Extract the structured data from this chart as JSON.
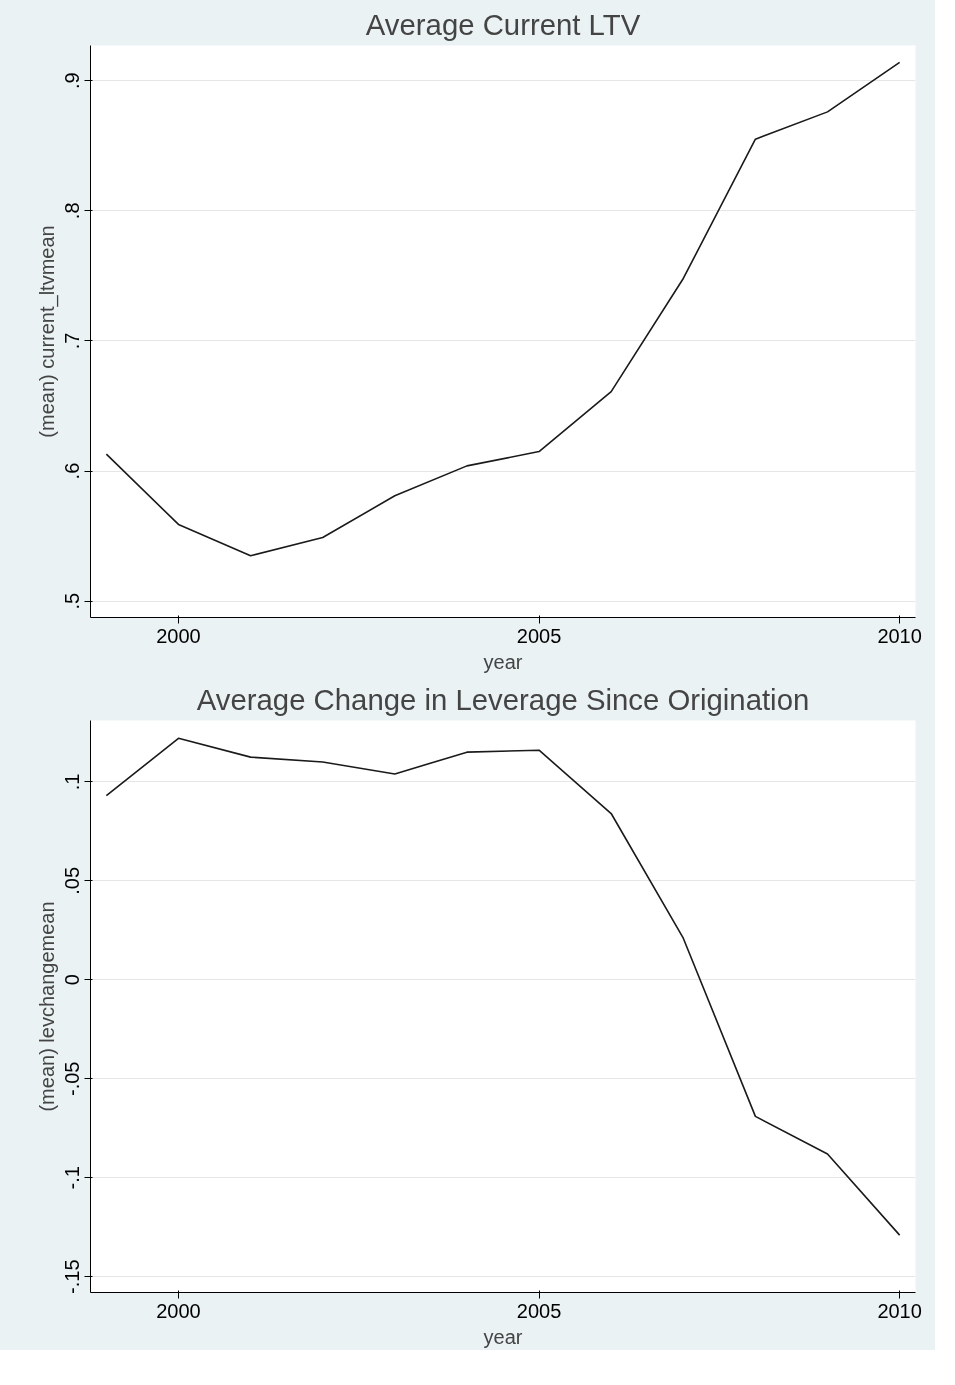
{
  "chart_data": [
    {
      "type": "line",
      "title": "Average Current LTV",
      "xlabel": "year",
      "ylabel": "(mean) current_ltvmean",
      "x": [
        1999,
        2000,
        2001,
        2002,
        2003,
        2004,
        2005,
        2006,
        2007,
        2008,
        2009,
        2010
      ],
      "series": [
        {
          "color": "#1a1a1a",
          "values": [
            0.613,
            0.559,
            0.535,
            0.549,
            0.581,
            0.604,
            0.615,
            0.661,
            0.748,
            0.855,
            0.876,
            0.914
          ]
        }
      ],
      "xlim": [
        1998.78,
        2010.22
      ],
      "ylim": [
        0.4875,
        0.927
      ],
      "xticks": [
        2000,
        2005,
        2010
      ],
      "yticks": [
        {
          "value": 0.5,
          "label": ".5"
        },
        {
          "value": 0.6,
          "label": ".6"
        },
        {
          "value": 0.7,
          "label": ".7"
        },
        {
          "value": 0.8,
          "label": ".8"
        },
        {
          "value": 0.9,
          "label": ".9"
        }
      ],
      "grid": "y",
      "marker": "none",
      "line_style": "solid"
    },
    {
      "type": "line",
      "title": "Average Change in Leverage Since Origination",
      "xlabel": "year",
      "ylabel": "(mean) levchangemean",
      "x": [
        1999,
        2000,
        2001,
        2002,
        2003,
        2004,
        2005,
        2006,
        2007,
        2008,
        2009,
        2010
      ],
      "series": [
        {
          "color": "#1a1a1a",
          "values": [
            0.093,
            0.122,
            0.1125,
            0.11,
            0.104,
            0.115,
            0.116,
            0.084,
            0.021,
            -0.069,
            -0.088,
            -0.129
          ]
        }
      ],
      "xlim": [
        1998.78,
        2010.22
      ],
      "ylim": [
        -0.158,
        0.131
      ],
      "xticks": [
        2000,
        2005,
        2010
      ],
      "yticks": [
        {
          "value": -0.15,
          "label": "-.15"
        },
        {
          "value": -0.1,
          "label": "-.1"
        },
        {
          "value": -0.05,
          "label": "-.05"
        },
        {
          "value": 0,
          "label": "0"
        },
        {
          "value": 0.05,
          "label": ".05"
        },
        {
          "value": 0.1,
          "label": ".1"
        }
      ],
      "grid": "y",
      "marker": "none",
      "line_style": "solid"
    }
  ]
}
